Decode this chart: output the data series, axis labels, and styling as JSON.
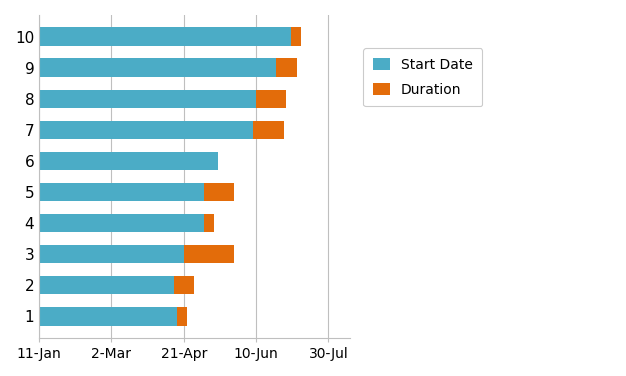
{
  "title": "",
  "categories": [
    "1",
    "2",
    "3",
    "4",
    "5",
    "6",
    "7",
    "8",
    "9",
    "10"
  ],
  "start_values": [
    0,
    0,
    0,
    0,
    0,
    0,
    0,
    0,
    0,
    0
  ],
  "blue_lengths": [
    95,
    93,
    100,
    114,
    114,
    124,
    148,
    150,
    164,
    174
  ],
  "orange_lengths": [
    7,
    14,
    35,
    7,
    21,
    0,
    21,
    21,
    14,
    7
  ],
  "bar_color_blue": "#4BACC6",
  "bar_color_orange": "#E36C0A",
  "xtick_labels": [
    "11-Jan",
    "2-Mar",
    "21-Apr",
    "10-Jun",
    "30-Jul"
  ],
  "xtick_values": [
    0,
    50,
    100,
    150,
    200
  ],
  "xlim": [
    0,
    215
  ],
  "ylim": [
    0.3,
    10.7
  ],
  "legend_labels": [
    "Start Date",
    "Duration"
  ],
  "bg_color": "#FFFFFF",
  "grid_color": "#BFBFBF",
  "bar_height": 0.6
}
